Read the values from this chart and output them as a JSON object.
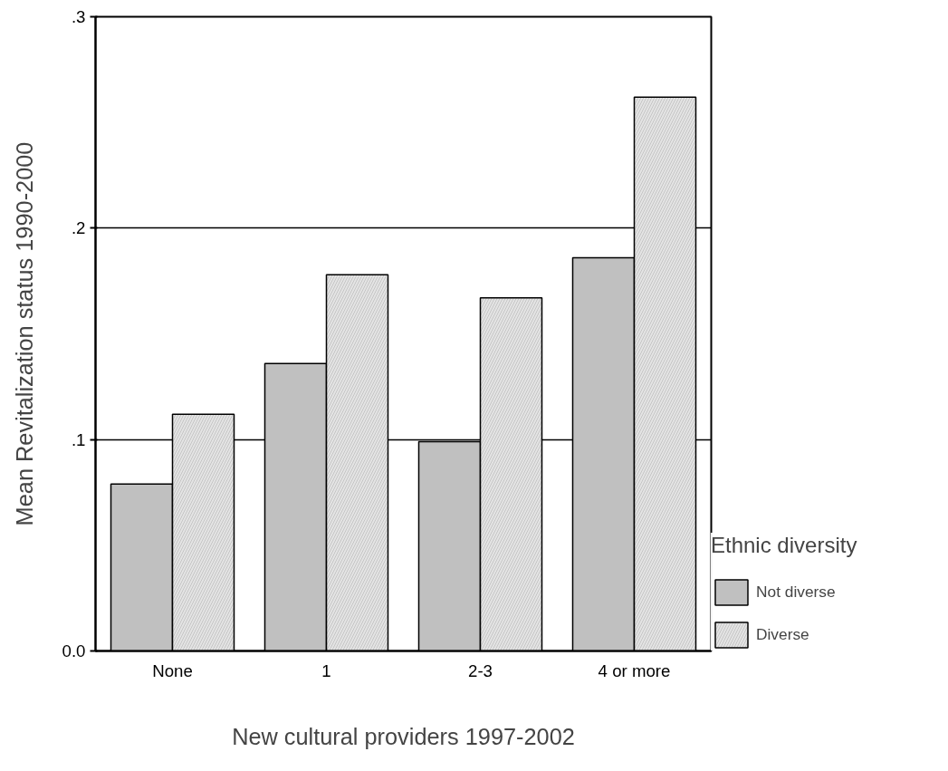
{
  "chart_data": {
    "type": "bar",
    "xlabel": "New cultural providers 1997-2002",
    "ylabel": "Mean Revitalization status 1990-2000",
    "legend_title": "Ethnic diversity",
    "categories": [
      "None",
      "1",
      "2-3",
      "4 or more"
    ],
    "series": [
      {
        "name": "Not diverse",
        "color": "#c0c0c0",
        "values": [
          0.079,
          0.136,
          0.099,
          0.186
        ]
      },
      {
        "name": "Diverse",
        "color": "#e4e4e4",
        "values": [
          0.112,
          0.178,
          0.167,
          0.262
        ]
      }
    ],
    "ylim": [
      0,
      0.3
    ],
    "yticks": [
      {
        "value": 0,
        "label": "0.0"
      },
      {
        "value": 0.1,
        "label": ".1"
      },
      {
        "value": 0.2,
        "label": ".2"
      },
      {
        "value": 0.3,
        "label": ".3"
      }
    ],
    "grid": "y",
    "legend": "bottom right"
  }
}
